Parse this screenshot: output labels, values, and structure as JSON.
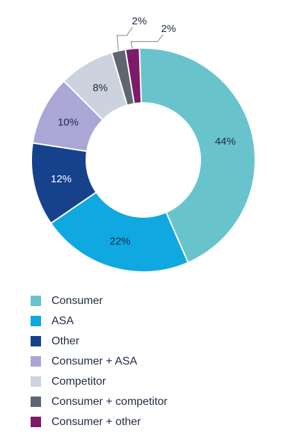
{
  "chart_data": {
    "type": "pie",
    "title": "",
    "donut": true,
    "slices": [
      {
        "label": "Consumer",
        "value": 44,
        "value_label": "44%",
        "color": "#68c3cd",
        "label_color": "#1f2a44"
      },
      {
        "label": "ASA",
        "value": 22,
        "value_label": "22%",
        "color": "#10a8e0",
        "label_color": "#1f2a44"
      },
      {
        "label": "Other",
        "value": 12,
        "value_label": "12%",
        "color": "#16428c",
        "label_color": "#ffffff"
      },
      {
        "label": "Consumer + ASA",
        "value": 10,
        "value_label": "10%",
        "color": "#aaa6d6",
        "label_color": "#1f2a44"
      },
      {
        "label": "Competitor",
        "value": 8,
        "value_label": "8%",
        "color": "#ccd3de",
        "label_color": "#1f2a44"
      },
      {
        "label": "Consumer + competitor",
        "value": 2,
        "value_label": "2%",
        "color": "#5e6670",
        "label_color": "#1f2a44"
      },
      {
        "label": "Consumer + other",
        "value": 2,
        "value_label": "2%",
        "color": "#7d1a6a",
        "label_color": "#1f2a44"
      }
    ],
    "legend_position": "bottom-left"
  }
}
